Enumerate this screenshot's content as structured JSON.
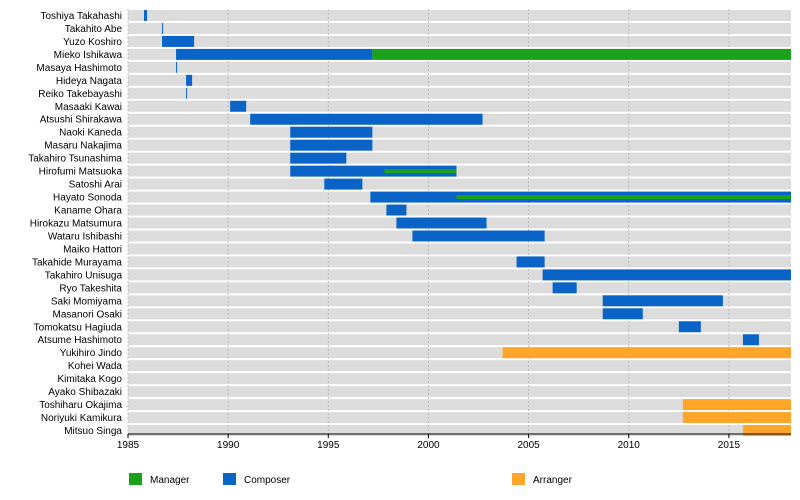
{
  "chart_data": {
    "type": "timeline",
    "title": "",
    "xlabel": "",
    "ylabel": "",
    "xlim": [
      1985,
      2018.1
    ],
    "x_ticks": [
      1985,
      1990,
      1995,
      2000,
      2005,
      2010,
      2015
    ],
    "grid": true,
    "legend_position": "bottom",
    "legend": [
      {
        "name": "Manager",
        "color": "#1aa31a"
      },
      {
        "name": "Composer",
        "color": "#0a64c8"
      },
      {
        "name": "Arranger",
        "color": "#ffa52a"
      }
    ],
    "rows": [
      {
        "name": "Toshiya Takahashi",
        "bars": [
          {
            "role": "Composer",
            "start": 1985.8,
            "end": 1985.95
          }
        ]
      },
      {
        "name": "Takahito Abe",
        "bars": [
          {
            "role": "Composer",
            "start": 1986.7,
            "end": 1986.75
          }
        ]
      },
      {
        "name": "Yuzo Koshiro",
        "bars": [
          {
            "role": "Composer",
            "start": 1986.7,
            "end": 1988.3
          }
        ]
      },
      {
        "name": "Mieko Ishikawa",
        "bars": [
          {
            "role": "Composer",
            "start": 1987.4,
            "end": 1997.2
          },
          {
            "role": "Manager",
            "start": 1997.2,
            "end": 2018.1
          }
        ]
      },
      {
        "name": "Masaya Hashimoto",
        "bars": [
          {
            "role": "Composer",
            "start": 1987.4,
            "end": 1987.45
          }
        ]
      },
      {
        "name": "Hideya Nagata",
        "bars": [
          {
            "role": "Composer",
            "start": 1987.9,
            "end": 1988.2
          }
        ]
      },
      {
        "name": "Reiko Takebayashi",
        "bars": [
          {
            "role": "Composer",
            "start": 1987.9,
            "end": 1987.95
          }
        ]
      },
      {
        "name": "Masaaki Kawai",
        "bars": [
          {
            "role": "Composer",
            "start": 1990.1,
            "end": 1990.9
          }
        ]
      },
      {
        "name": "Atsushi Shirakawa",
        "bars": [
          {
            "role": "Composer",
            "start": 1991.1,
            "end": 2002.7
          }
        ]
      },
      {
        "name": "Naoki Kaneda",
        "bars": [
          {
            "role": "Composer",
            "start": 1993.1,
            "end": 1997.2
          }
        ]
      },
      {
        "name": "Masaru Nakajima",
        "bars": [
          {
            "role": "Composer",
            "start": 1993.1,
            "end": 1997.2
          }
        ]
      },
      {
        "name": "Takahiro Tsunashima",
        "bars": [
          {
            "role": "Composer",
            "start": 1993.1,
            "end": 1995.9
          }
        ]
      },
      {
        "name": "Hirofumi Matsuoka",
        "bars": [
          {
            "role": "Composer",
            "start": 1993.1,
            "end": 2001.4
          },
          {
            "role": "Manager",
            "start": 1997.8,
            "end": 2001.4,
            "thin": true
          }
        ]
      },
      {
        "name": "Satoshi Arai",
        "bars": [
          {
            "role": "Composer",
            "start": 1994.8,
            "end": 1996.7
          }
        ]
      },
      {
        "name": "Hayato Sonoda",
        "bars": [
          {
            "role": "Composer",
            "start": 1997.1,
            "end": 2018.1
          },
          {
            "role": "Manager",
            "start": 2001.4,
            "end": 2018.1,
            "thin": true
          }
        ]
      },
      {
        "name": "Kaname Ohara",
        "bars": [
          {
            "role": "Composer",
            "start": 1997.9,
            "end": 1998.9
          }
        ]
      },
      {
        "name": "Hirokazu Matsumura",
        "bars": [
          {
            "role": "Composer",
            "start": 1998.4,
            "end": 2002.9
          }
        ]
      },
      {
        "name": "Wataru Ishibashi",
        "bars": [
          {
            "role": "Composer",
            "start": 1999.2,
            "end": 2005.8
          }
        ]
      },
      {
        "name": "Maiko Hattori",
        "bars": []
      },
      {
        "name": "Takahide Murayama",
        "bars": [
          {
            "role": "Composer",
            "start": 2004.4,
            "end": 2005.8
          }
        ]
      },
      {
        "name": "Takahiro Unisuga",
        "bars": [
          {
            "role": "Composer",
            "start": 2005.7,
            "end": 2018.1
          }
        ]
      },
      {
        "name": "Ryo Takeshita",
        "bars": [
          {
            "role": "Composer",
            "start": 2006.2,
            "end": 2007.4
          }
        ]
      },
      {
        "name": "Saki Momiyama",
        "bars": [
          {
            "role": "Composer",
            "start": 2008.7,
            "end": 2014.7
          }
        ]
      },
      {
        "name": "Masanori Osaki",
        "bars": [
          {
            "role": "Composer",
            "start": 2008.7,
            "end": 2010.7
          }
        ]
      },
      {
        "name": "Tomokatsu Hagiuda",
        "bars": [
          {
            "role": "Composer",
            "start": 2012.5,
            "end": 2013.6
          }
        ]
      },
      {
        "name": "Atsume Hashimoto",
        "bars": [
          {
            "role": "Composer",
            "start": 2015.7,
            "end": 2016.5
          }
        ]
      },
      {
        "name": "Yukihiro Jindo",
        "bars": [
          {
            "role": "Arranger",
            "start": 2003.7,
            "end": 2018.1
          }
        ]
      },
      {
        "name": "Kohei Wada",
        "bars": []
      },
      {
        "name": "Kimitaka Kogo",
        "bars": []
      },
      {
        "name": "Ayako Shibazaki",
        "bars": []
      },
      {
        "name": "Toshiharu Okajima",
        "bars": [
          {
            "role": "Arranger",
            "start": 2012.7,
            "end": 2018.1
          }
        ]
      },
      {
        "name": "Noriyuki Kamikura",
        "bars": [
          {
            "role": "Arranger",
            "start": 2012.7,
            "end": 2018.1
          }
        ]
      },
      {
        "name": "Mitsuo Singa",
        "bars": [
          {
            "role": "Arranger",
            "start": 2015.7,
            "end": 2018.1
          }
        ]
      }
    ]
  }
}
